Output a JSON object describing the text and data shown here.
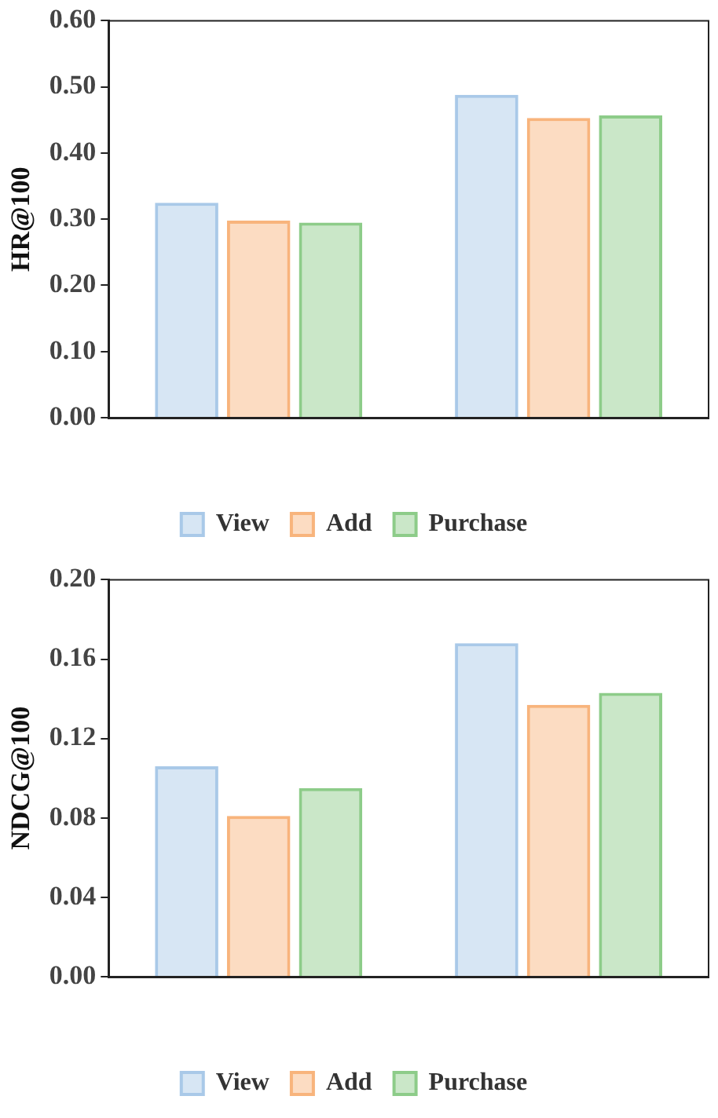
{
  "chart_data": [
    {
      "type": "bar",
      "ylabel": "HR@100",
      "categories": [
        null,
        null
      ],
      "series": [
        {
          "name": "View",
          "color": "#a9c9e8",
          "values": [
            0.325,
            0.488
          ]
        },
        {
          "name": "Add",
          "color": "#f8b47c",
          "values": [
            0.298,
            0.453
          ]
        },
        {
          "name": "Purchase",
          "color": "#8dcc89",
          "values": [
            0.295,
            0.457
          ]
        }
      ],
      "ylim": [
        0,
        0.6
      ],
      "yticks": [
        {
          "value": 0,
          "label": "0.00"
        },
        {
          "value": 0.1,
          "label": "0.10"
        },
        {
          "value": 0.2,
          "label": "0.20"
        },
        {
          "value": 0.3,
          "label": "0.30"
        },
        {
          "value": 0.4,
          "label": "0.40"
        },
        {
          "value": 0.5,
          "label": "0.50"
        },
        {
          "value": 0.6,
          "label": "0.60"
        }
      ],
      "grid": false,
      "legend": "bottom"
    },
    {
      "type": "bar",
      "ylabel": "NDCG@100",
      "categories": [
        null,
        null
      ],
      "series": [
        {
          "name": "View",
          "color": "#a9c9e8",
          "values": [
            0.106,
            0.168
          ]
        },
        {
          "name": "Add",
          "color": "#f8b47c",
          "values": [
            0.081,
            0.137
          ]
        },
        {
          "name": "Purchase",
          "color": "#8dcc89",
          "values": [
            0.095,
            0.143
          ]
        }
      ],
      "ylim": [
        0,
        0.2
      ],
      "yticks": [
        {
          "value": 0,
          "label": "0.00"
        },
        {
          "value": 0.04,
          "label": "0.04"
        },
        {
          "value": 0.08,
          "label": "0.08"
        },
        {
          "value": 0.12,
          "label": "0.12"
        },
        {
          "value": 0.16,
          "label": "0.16"
        },
        {
          "value": 0.2,
          "label": "0.20"
        }
      ],
      "grid": false,
      "legend": "bottom"
    }
  ]
}
